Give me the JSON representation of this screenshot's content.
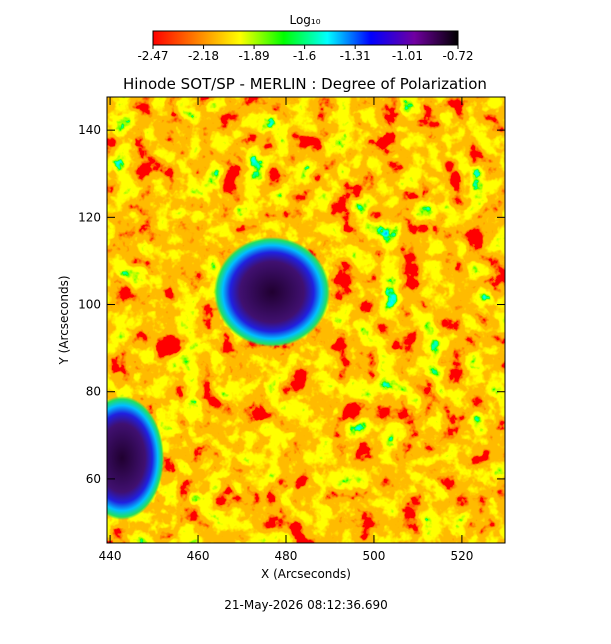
{
  "chart_data": {
    "type": "heatmap",
    "title": "Hinode SOT/SP - MERLIN : Degree of Polarization",
    "x_label": "X (Arcseconds)",
    "y_label": "Y (Arcseconds)",
    "xlim": [
      439.3,
      529.8
    ],
    "xticks": [
      440,
      460,
      480,
      500,
      520
    ],
    "ylim": [
      45.3,
      147.6
    ],
    "yticks": [
      60,
      80,
      100,
      120,
      140
    ],
    "colorbar_label": "Log₁₀",
    "clim": [
      -2.47,
      -0.72
    ],
    "cticks": [
      -2.47,
      -2.18,
      -1.89,
      -1.6,
      -1.31,
      -1.01,
      -0.72
    ],
    "colormap": [
      "#ff0000",
      "#ff7f00",
      "#ffff00",
      "#00ff00",
      "#00ffff",
      "#0000ff",
      "#7000a0",
      "#000000"
    ],
    "footer": "21-May-2026 08:12:36.690"
  }
}
